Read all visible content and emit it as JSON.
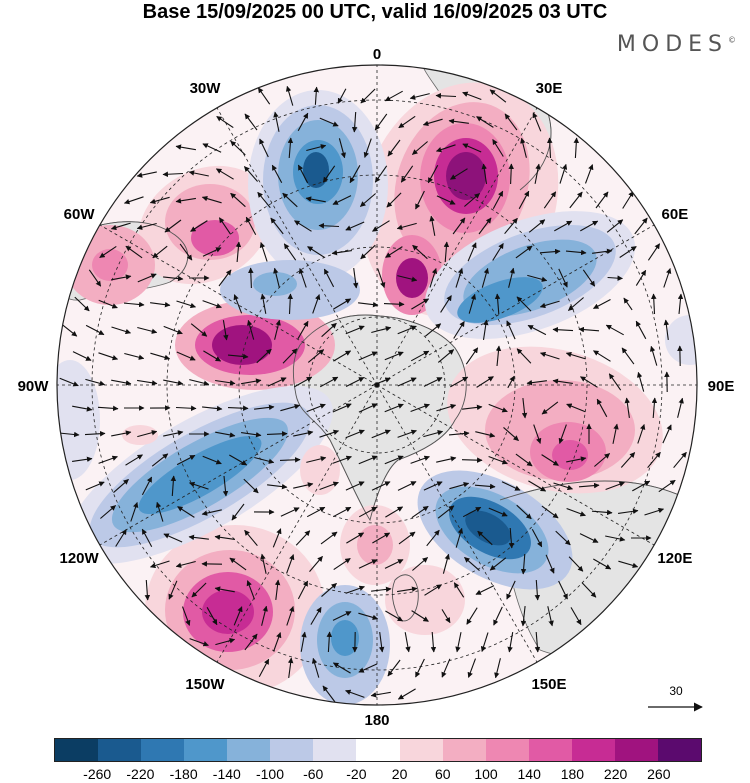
{
  "title": "Base 15/09/2025 00 UTC, valid 16/09/2025 03 UTC",
  "brand": "MODES",
  "brand_mark": "©",
  "map": {
    "projection": "south polar stereographic",
    "longitude_labels": [
      {
        "text": "0",
        "deg": 0
      },
      {
        "text": "30E",
        "deg": 30
      },
      {
        "text": "60E",
        "deg": 60
      },
      {
        "text": "90E",
        "deg": 90
      },
      {
        "text": "120E",
        "deg": 120
      },
      {
        "text": "150E",
        "deg": 150
      },
      {
        "text": "180",
        "deg": 180
      },
      {
        "text": "150W",
        "deg": -150
      },
      {
        "text": "120W",
        "deg": -120
      },
      {
        "text": "90W",
        "deg": -90
      },
      {
        "text": "60W",
        "deg": -60
      },
      {
        "text": "30W",
        "deg": -30
      }
    ],
    "vector_scale_label": "30"
  },
  "colorbar": {
    "colors": [
      "#0b3d63",
      "#1a5a8f",
      "#2f78b2",
      "#4f97cb",
      "#86b2da",
      "#bcc9e7",
      "#e1e1f0",
      "#ffffff",
      "#f8d6dc",
      "#f3aec2",
      "#ee87b2",
      "#e15aa5",
      "#c72c94",
      "#a0137f",
      "#5b0a6e"
    ],
    "labels": [
      "-260",
      "-220",
      "-180",
      "-140",
      "-100",
      "-60",
      "-20",
      "20",
      "60",
      "100",
      "140",
      "180",
      "220",
      "260"
    ]
  },
  "colors": {
    "land": "#e6e6e6",
    "coast": "#555555",
    "grid": "#222222"
  }
}
